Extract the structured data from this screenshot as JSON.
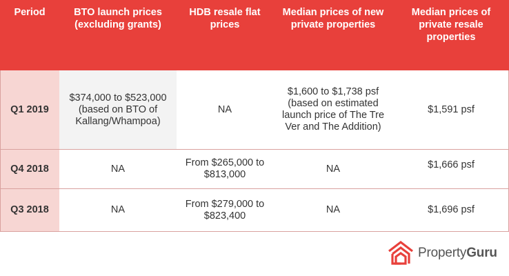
{
  "table": {
    "headers": [
      "Period",
      "BTO launch prices (excluding grants)",
      "HDB resale flat prices",
      "Median prices of new private properties",
      "Median prices of private resale properties"
    ],
    "rows": [
      {
        "period": "Q1 2019",
        "bto": "$374,000 to $523,000 (based on BTO of Kallang/Whampoa)",
        "hdb": "NA",
        "new_private": "$1,600 to $1,738 psf (based on estimated launch price of The Tre Ver and The Addition)",
        "private_resale": "$1,591 psf"
      },
      {
        "period": "Q4 2018",
        "bto": "NA",
        "hdb": "From $265,000 to $813,000",
        "new_private": "NA",
        "private_resale": "$1,666 psf"
      },
      {
        "period": "Q3 2018",
        "bto": "NA",
        "hdb": "From $279,000 to $823,400",
        "new_private": "NA",
        "private_resale": "$1,696 psf"
      }
    ]
  },
  "logo": {
    "icon": "propertyguru-house-icon",
    "text_part1": "Property",
    "text_part2": "Guru",
    "color": "#e8403b"
  }
}
